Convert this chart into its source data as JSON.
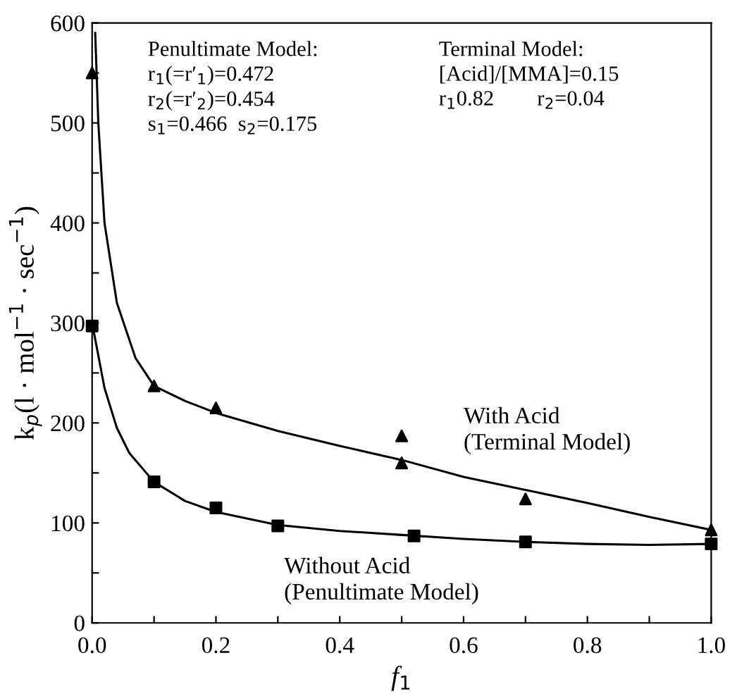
{
  "chart_data": {
    "type": "scatter",
    "xlabel": "f$_{1}$",
    "ylabel": "k$_{p}$(l · mol$^{−1}$ · sec$^{−1}$)",
    "xlim": [
      0,
      1.0
    ],
    "ylim": [
      0,
      600
    ],
    "xticks": [
      {
        "value": 0.0,
        "label": "0.0"
      },
      {
        "value": 0.1,
        "label": null
      },
      0.2,
      {
        "value": 0.3,
        "label": null
      },
      0.4,
      {
        "value": 0.5,
        "label": null
      },
      0.6,
      {
        "value": 0.7,
        "label": null
      },
      0.8,
      {
        "value": 0.9,
        "label": null
      },
      {
        "value": 1.0,
        "label": "1.0"
      }
    ],
    "yticks": [
      0,
      {
        "value": 50,
        "label": null
      },
      100,
      {
        "value": 150,
        "label": null
      },
      200,
      {
        "value": 250,
        "label": null
      },
      300,
      {
        "value": 350,
        "label": null
      },
      400,
      {
        "value": 450,
        "label": null
      },
      500,
      {
        "value": 550,
        "label": null
      },
      600
    ],
    "grid": false,
    "legend": false,
    "annotations": [
      "Penultimate Model:\nr$_{1}$(=r′$_{1}$)=0.472\nr$_{2}$(=r′$_{2}$)=0.454\ns$_{1}$=0.466  s$_{2}$=0.175",
      "Terminal Model:\n[Acid]/[MMA]=0.15\nr$_{1}$0.82        r$_{2}$=0.04"
    ],
    "series": [
      {
        "marker": "triangle",
        "color": "#000000",
        "x": [
          0.0,
          0.1,
          0.2,
          0.5,
          0.5,
          0.7,
          1.0
        ],
        "values": [
          550,
          237,
          215,
          187,
          160,
          124,
          93
        ]
      },
      {
        "marker": "square",
        "color": "#000000",
        "x": [
          0.0,
          0.1,
          0.2,
          0.3,
          0.52,
          0.7,
          1.0
        ],
        "values": [
          297,
          141,
          115,
          97,
          87,
          81,
          79
        ]
      },
      {
        "type": "line",
        "name": "With Acid\n(Terminal Model)",
        "color": "#000000",
        "x": [
          0.005,
          0.01,
          0.02,
          0.04,
          0.07,
          0.1,
          0.15,
          0.2,
          0.3,
          0.4,
          0.5,
          0.6,
          0.7,
          0.8,
          0.9,
          1.0
        ],
        "values": [
          590,
          500,
          400,
          320,
          265,
          237,
          222,
          210,
          192,
          177,
          163,
          146,
          133,
          120,
          106,
          93
        ]
      },
      {
        "type": "line",
        "name": "Without Acid\n(Penultimate Model)",
        "color": "#000000",
        "x": [
          0.0,
          0.02,
          0.04,
          0.06,
          0.1,
          0.15,
          0.2,
          0.3,
          0.4,
          0.5,
          0.6,
          0.7,
          0.8,
          0.9,
          1.0
        ],
        "values": [
          300,
          235,
          195,
          170,
          141,
          122,
          111,
          98,
          92,
          88,
          84,
          81,
          79,
          78,
          79
        ]
      }
    ]
  }
}
